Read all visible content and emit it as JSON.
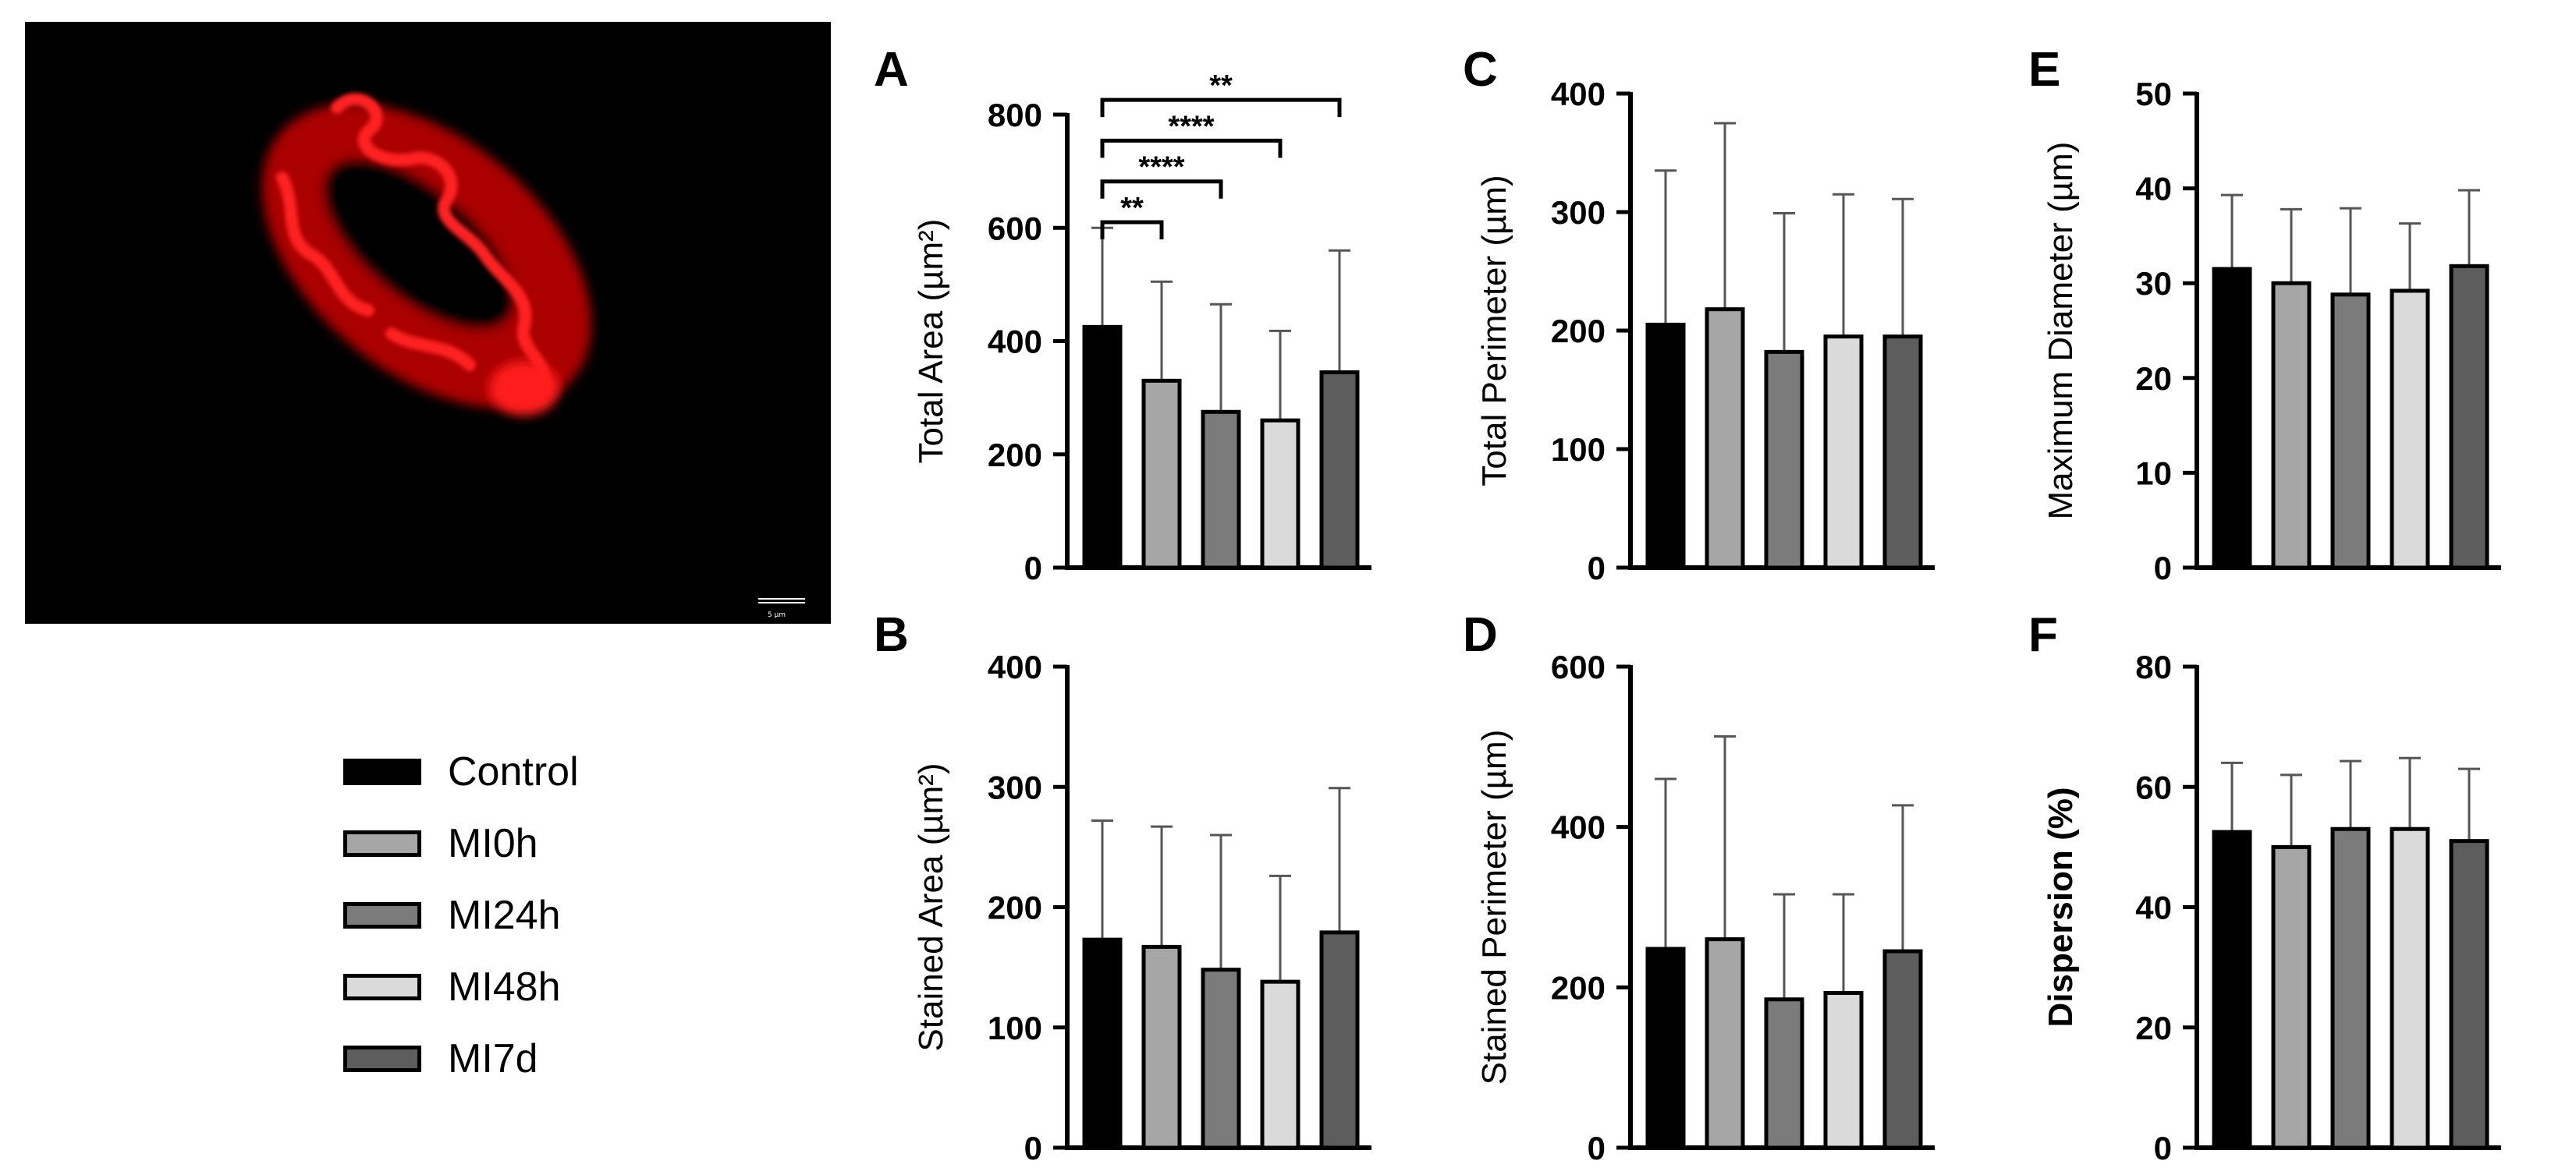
{
  "image": {
    "scale_bar_label": "5 µm"
  },
  "legend": {
    "items": [
      {
        "label": "Control",
        "color": "#000000"
      },
      {
        "label": "MI0h",
        "color": "#a6a6a6"
      },
      {
        "label": "MI24h",
        "color": "#7b7b7b"
      },
      {
        "label": "MI48h",
        "color": "#dadada"
      },
      {
        "label": "MI7d",
        "color": "#5d5d5d"
      }
    ]
  },
  "chart_data": [
    {
      "panel": "A",
      "type": "bar",
      "categories": [
        "Control",
        "MI0h",
        "MI24h",
        "MI48h",
        "MI7d"
      ],
      "values": [
        425,
        330,
        275,
        260,
        345
      ],
      "errors": [
        175,
        175,
        190,
        158,
        215
      ],
      "ylabel": "Total Area (µm²)",
      "ylim": [
        0,
        800
      ],
      "yticks": [
        "0",
        "200",
        "400",
        "600",
        "800"
      ],
      "significance": [
        {
          "from": 0,
          "to": 1,
          "label": "**"
        },
        {
          "from": 0,
          "to": 2,
          "label": "****"
        },
        {
          "from": 0,
          "to": 3,
          "label": "****"
        },
        {
          "from": 0,
          "to": 4,
          "label": "**"
        }
      ]
    },
    {
      "panel": "B",
      "type": "bar",
      "categories": [
        "Control",
        "MI0h",
        "MI24h",
        "MI48h",
        "MI7d"
      ],
      "values": [
        173,
        167,
        148,
        138,
        179
      ],
      "errors": [
        99,
        100,
        112,
        88,
        120
      ],
      "ylabel": "Stained Area (µm²)",
      "ylim": [
        0,
        400
      ],
      "yticks": [
        "0",
        "100",
        "200",
        "300",
        "400"
      ],
      "significance": []
    },
    {
      "panel": "C",
      "type": "bar",
      "categories": [
        "Control",
        "MI0h",
        "MI24h",
        "MI48h",
        "MI7d"
      ],
      "values": [
        205,
        218,
        182,
        195,
        195
      ],
      "errors": [
        130,
        157,
        117,
        120,
        116
      ],
      "ylabel": "Total Perimeter (µm)",
      "ylim": [
        0,
        400
      ],
      "yticks": [
        "0",
        "100",
        "200",
        "300",
        "400"
      ],
      "significance": []
    },
    {
      "panel": "D",
      "type": "bar",
      "categories": [
        "Control",
        "MI0h",
        "MI24h",
        "MI48h",
        "MI7d"
      ],
      "values": [
        248,
        260,
        185,
        193,
        245
      ],
      "errors": [
        212,
        253,
        131,
        123,
        182
      ],
      "ylabel": "Stained Perimeter (µm)",
      "ylim": [
        0,
        600
      ],
      "yticks": [
        "0",
        "200",
        "400",
        "600"
      ],
      "significance": []
    },
    {
      "panel": "E",
      "type": "bar",
      "categories": [
        "Control",
        "MI0h",
        "MI24h",
        "MI48h",
        "MI7d"
      ],
      "values": [
        31.5,
        30,
        28.8,
        29.2,
        31.8
      ],
      "errors": [
        7.8,
        7.8,
        9.1,
        7.1,
        8.0
      ],
      "ylabel": "Maximum Diameter (µm)",
      "ylim": [
        0,
        50
      ],
      "yticks": [
        "0",
        "10",
        "20",
        "30",
        "40",
        "50"
      ],
      "significance": []
    },
    {
      "panel": "F",
      "type": "bar",
      "categories": [
        "Control",
        "MI0h",
        "MI24h",
        "MI48h",
        "MI7d"
      ],
      "values": [
        52.5,
        50,
        53,
        53,
        51
      ],
      "errors": [
        11.5,
        12,
        11.3,
        11.8,
        12
      ],
      "ylabel": "Dispersion (%)",
      "ylim": [
        0,
        80
      ],
      "yticks": [
        "0",
        "20",
        "40",
        "60",
        "80"
      ],
      "significance": []
    }
  ]
}
